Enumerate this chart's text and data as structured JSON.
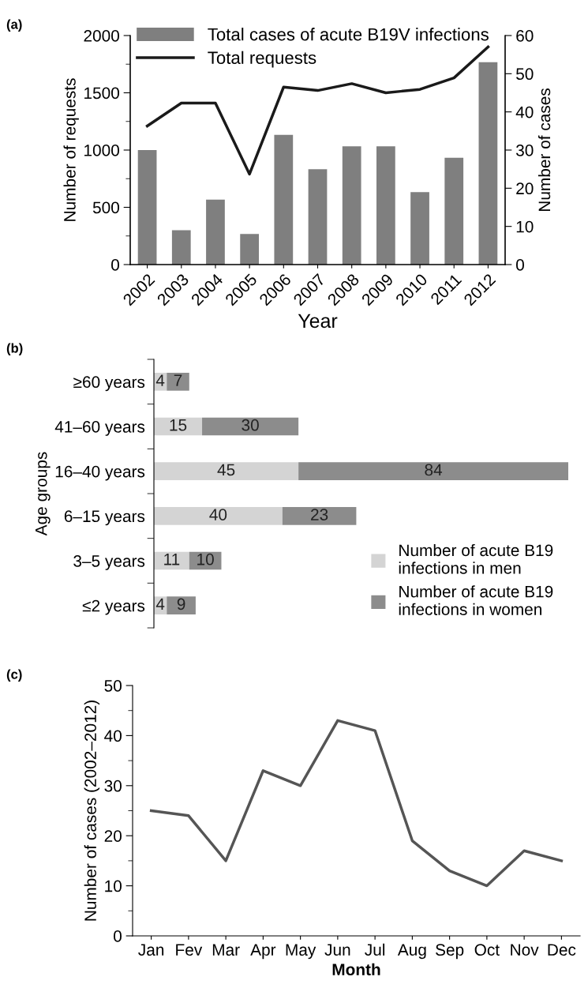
{
  "chart_data": [
    {
      "type": "bar",
      "annotations": [
        "(a)"
      ],
      "xlabel": "Year",
      "ylabel": "Number of requests",
      "y2label": "Number of cases",
      "categories": [
        "2002",
        "2003",
        "2004",
        "2005",
        "2006",
        "2007",
        "2008",
        "2009",
        "2010",
        "2011",
        "2012"
      ],
      "series": [
        {
          "name": "Total cases of acute B19V infections",
          "type": "bar",
          "axis": "y2",
          "color": "#7f7f7f",
          "values": [
            30,
            9,
            17,
            8,
            34,
            25,
            31,
            31,
            19,
            28,
            53
          ]
        },
        {
          "name": "Total requests",
          "type": "line",
          "axis": "y",
          "color": "#1a1a1a",
          "values": [
            1210,
            1410,
            1410,
            790,
            1550,
            1520,
            1580,
            1500,
            1530,
            1630,
            1900
          ]
        }
      ],
      "ylim": [
        0,
        2000
      ],
      "yticks": [
        0,
        {
          "value": 250,
          "label": null
        },
        500,
        {
          "value": 750,
          "label": null
        },
        1000,
        {
          "value": 1250,
          "label": null
        },
        1500,
        {
          "value": 1750,
          "label": null
        },
        2000
      ],
      "y2lim": [
        0,
        60
      ],
      "y2ticks": [
        0,
        10,
        20,
        30,
        40,
        50,
        60
      ],
      "legend": "top",
      "grid": false
    },
    {
      "type": "bar",
      "orientation": "horizontal",
      "stacked": true,
      "data_labels": true,
      "annotations": [
        "(b)"
      ],
      "ylabel": "Age groups",
      "categories": [
        "≥60 years",
        "41–60 years",
        "16–40 years",
        "6–15 years",
        "3–5 years",
        "≤2 years"
      ],
      "series": [
        {
          "name": "Number of acute B19\ninfections in men",
          "color": "#d4d4d4",
          "values": [
            4,
            15,
            45,
            40,
            11,
            4
          ]
        },
        {
          "name": "Number of acute B19\ninfections in women",
          "color": "#8c8c8c",
          "values": [
            7,
            30,
            84,
            23,
            10,
            9
          ]
        }
      ],
      "legend": "bottom right",
      "grid": false
    },
    {
      "type": "line",
      "annotations": [
        "(c)"
      ],
      "xlabel": "Month",
      "ylabel": "Number of cases (2002–2012)",
      "categories": [
        "Jan",
        "Fev",
        "Mar",
        "Apr",
        "May",
        "Jun",
        "Jul",
        "Aug",
        "Sep",
        "Oct",
        "Nov",
        "Dec"
      ],
      "series": [
        {
          "color": "#555555",
          "values": [
            25,
            24,
            15,
            33,
            30,
            43,
            41,
            19,
            13,
            10,
            17,
            15
          ]
        }
      ],
      "ylim": [
        0,
        50
      ],
      "yticks": [
        0,
        {
          "value": 5,
          "label": null
        },
        10,
        {
          "value": 15,
          "label": null
        },
        20,
        {
          "value": 25,
          "label": null
        },
        30,
        {
          "value": 35,
          "label": null
        },
        40,
        {
          "value": 45,
          "label": null
        },
        50
      ],
      "marker": "none",
      "line_style": "solid",
      "grid": false
    }
  ]
}
